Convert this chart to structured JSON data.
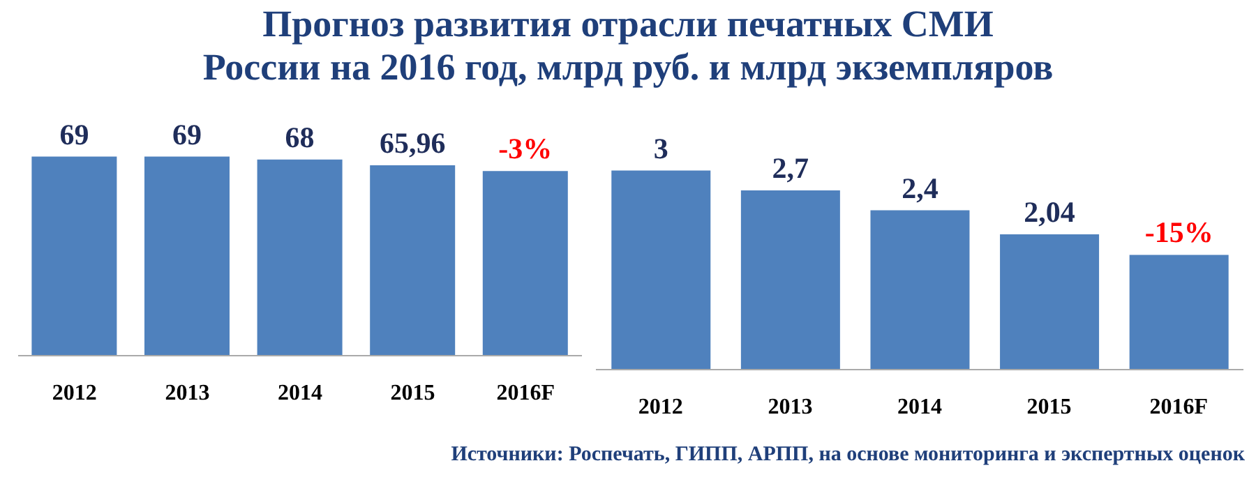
{
  "chart_data": [
    {
      "type": "bar",
      "title": "Прогноз развития отрасли печатных СМИ\nРоссии на 2016 год, млрд руб. и млрд экземпляров",
      "categories": [
        "2012",
        "2013",
        "2014",
        "2015",
        "2016F"
      ],
      "values": [
        69,
        69,
        68,
        65.96,
        64
      ],
      "color": "#4f81bd",
      "value_labels": [
        "69",
        "69",
        "68",
        "65,96",
        null
      ],
      "annotations": [
        {
          "text": "-3%",
          "x": "2016F",
          "y": 64
        }
      ],
      "tick_labels": "x",
      "grid": false,
      "legend": false
    },
    {
      "type": "bar",
      "categories": [
        "2012",
        "2013",
        "2014",
        "2015",
        "2016F"
      ],
      "values": [
        3,
        2.7,
        2.4,
        2.04,
        1.73
      ],
      "color": "#4f81bd",
      "value_labels": [
        "3",
        "2,7",
        "2,4",
        "2,04",
        null
      ],
      "annotations": [
        {
          "text": "-15%",
          "x": "2016F",
          "y": 1.73
        },
        "Источники: Роспечать, ГИПП, АРПП, на основе мониторинга и экспертных оценок"
      ],
      "tick_labels": "x",
      "grid": false,
      "legend": false
    }
  ]
}
